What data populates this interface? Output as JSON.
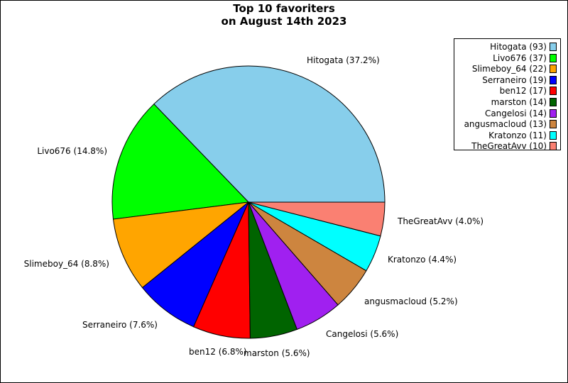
{
  "chart_data": {
    "type": "pie",
    "title_lines": [
      "Top 10 favoriters",
      "on August 14th 2023"
    ],
    "slices": [
      {
        "name": "Hitogata",
        "value": 93,
        "label": "Hitogata (37.2%)",
        "legend": "Hitogata (93)",
        "color": "#87CEEB"
      },
      {
        "name": "Livo676",
        "value": 37,
        "label": "Livo676 (14.8%)",
        "legend": "Livo676 (37)",
        "color": "#00FF00"
      },
      {
        "name": "Slimeboy_64",
        "value": 22,
        "label": "Slimeboy_64 (8.8%)",
        "legend": "Slimeboy_64 (22)",
        "color": "#FFA500"
      },
      {
        "name": "Serraneiro",
        "value": 19,
        "label": "Serraneiro (7.6%)",
        "legend": "Serraneiro (19)",
        "color": "#0000FF"
      },
      {
        "name": "ben12",
        "value": 17,
        "label": "ben12 (6.8%)",
        "legend": "ben12 (17)",
        "color": "#FF0000"
      },
      {
        "name": "marston",
        "value": 14,
        "label": "marston (5.6%)",
        "legend": "marston (14)",
        "color": "#006400"
      },
      {
        "name": "Cangelosi",
        "value": 14,
        "label": "Cangelosi (5.6%)",
        "legend": "Cangelosi (14)",
        "color": "#A020F0"
      },
      {
        "name": "angusmacloud",
        "value": 13,
        "label": "angusmacloud (5.2%)",
        "legend": "angusmacloud (13)",
        "color": "#CD853F"
      },
      {
        "name": "Kratonzo",
        "value": 11,
        "label": "Kratonzo (4.4%)",
        "legend": "Kratonzo (11)",
        "color": "#00FFFF"
      },
      {
        "name": "TheGreatAvv",
        "value": 10,
        "label": "TheGreatAvv (4.0%)",
        "legend": "TheGreatAvv (10)",
        "color": "#FA8072"
      }
    ],
    "legend_position": "top-right"
  }
}
